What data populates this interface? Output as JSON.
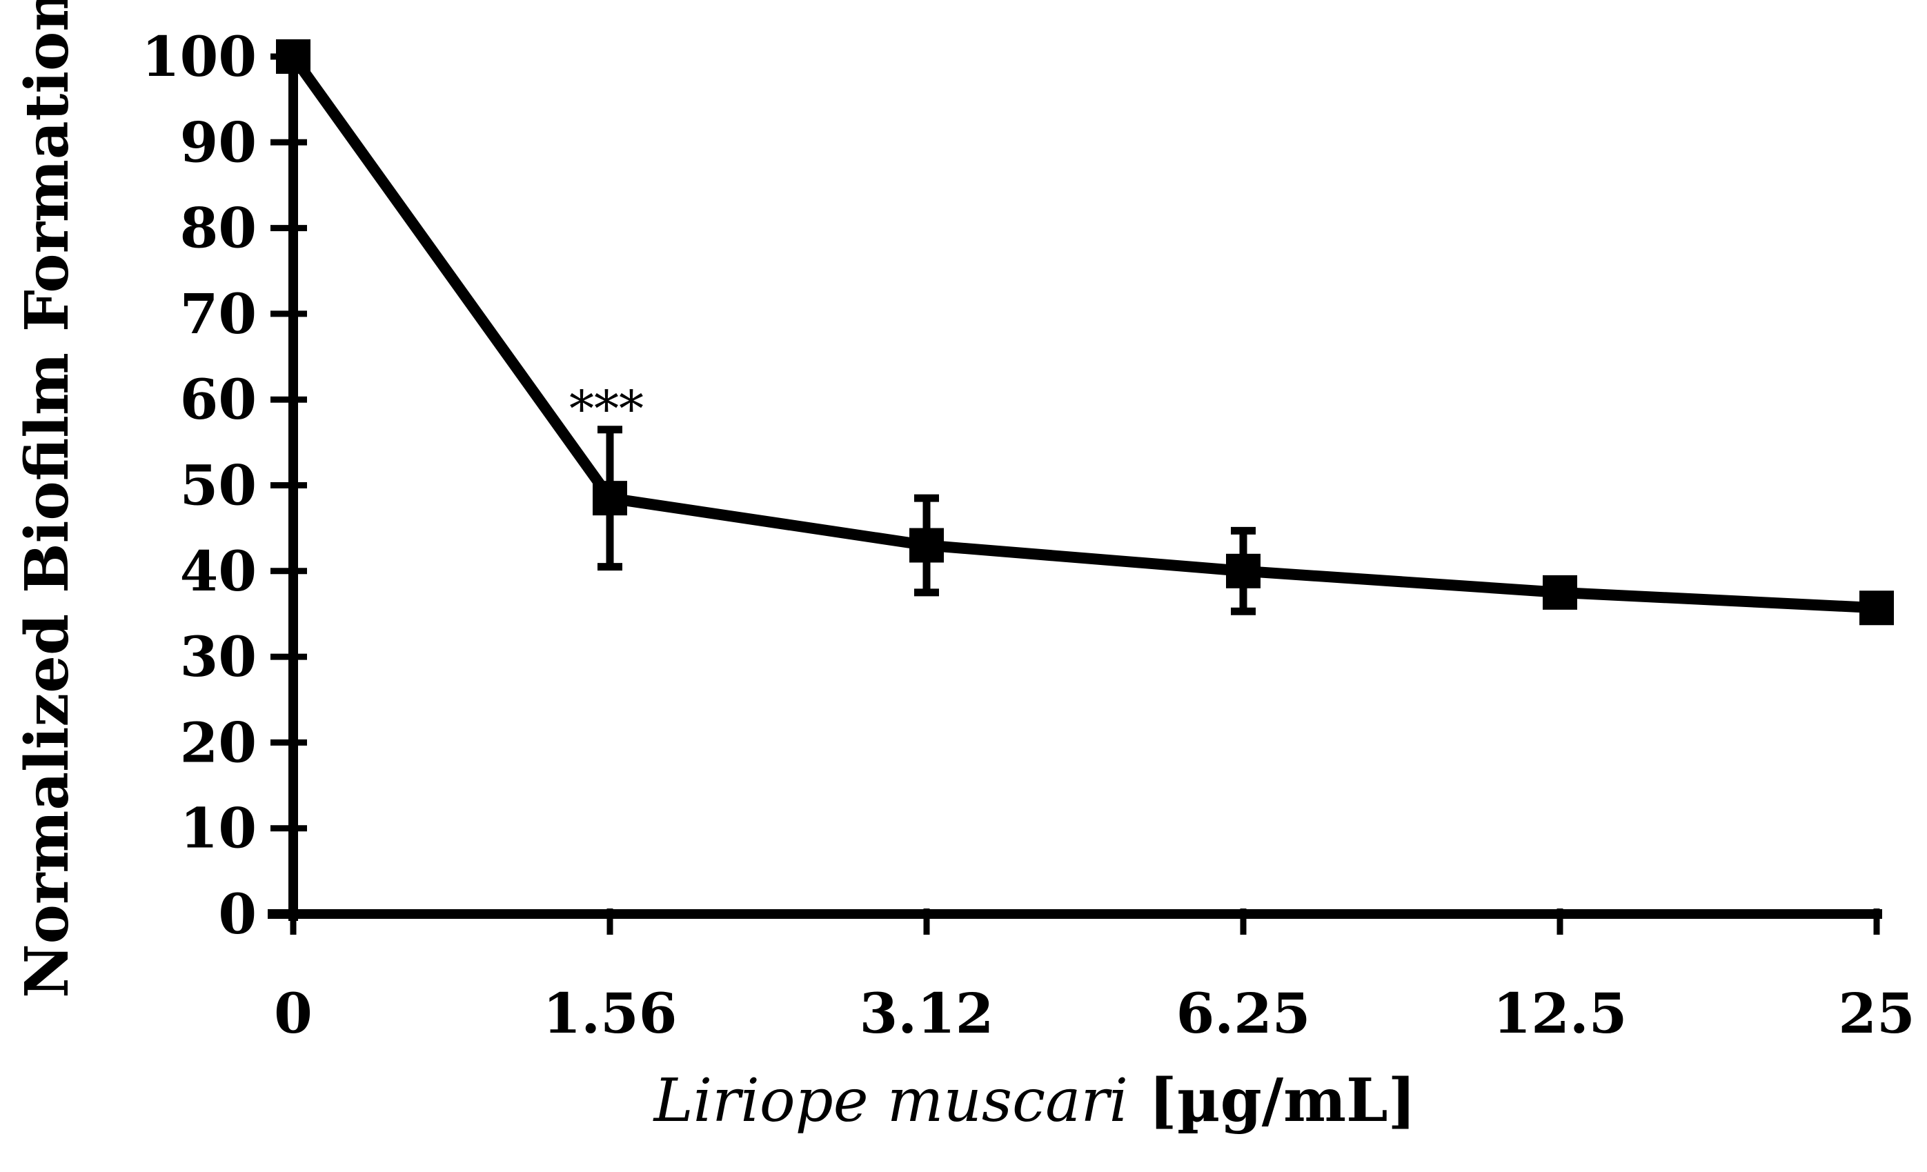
{
  "chart_data": {
    "type": "line",
    "categories": [
      "0",
      "1.56",
      "3.12",
      "6.25",
      "12.5",
      "25"
    ],
    "series": [
      {
        "values": [
          100,
          48.5,
          43,
          40,
          37.5,
          35.7
        ],
        "error": [
          0,
          8,
          5.5,
          4.7,
          1.5,
          0
        ]
      }
    ],
    "ylabel": "Normalized Biofilm Formation",
    "xlabel_italic": "Liriope muscari",
    "xlabel_unit": " [µg/mL]",
    "ylim": [
      0,
      100
    ],
    "yticks": [
      0,
      10,
      20,
      30,
      40,
      50,
      60,
      70,
      80,
      90,
      100
    ],
    "annotations": [
      {
        "category_index": 1,
        "text": "***"
      }
    ],
    "grid": false,
    "legend": "none",
    "color": "#000000"
  }
}
